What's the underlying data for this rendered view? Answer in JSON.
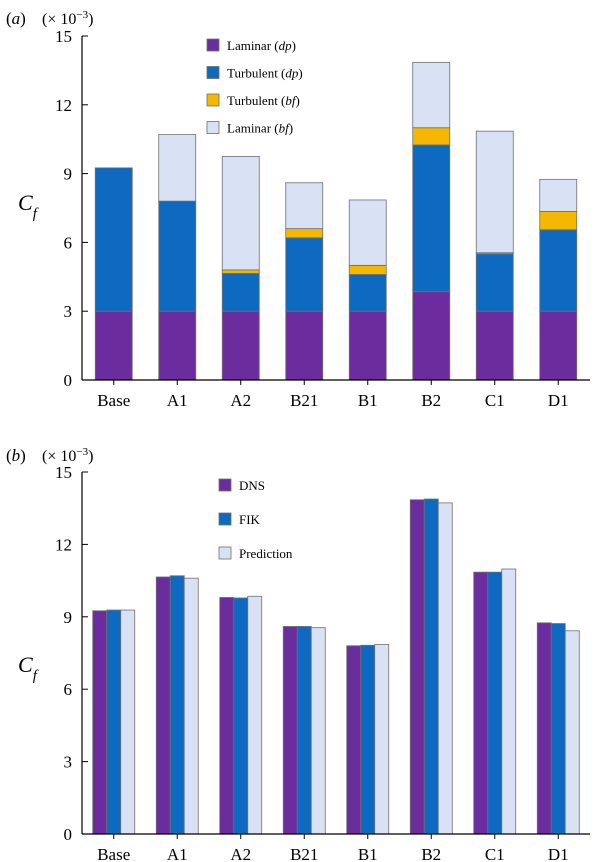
{
  "colors": {
    "laminar_dp": "#6B2D9E",
    "turbulent_dp": "#0E6AC0",
    "turbulent_bf": "#F5B700",
    "laminar_bf": "#D9E2F4",
    "dns": "#6B2D9E",
    "fik": "#0E6AC0",
    "prediction": "#D9E2F4"
  },
  "chart_data": [
    {
      "type": "bar",
      "stacked": true,
      "panel_label": "(a)",
      "scale_label_prefix": "(× 10",
      "scale_label_exp": "−3",
      "scale_label_suffix": ")",
      "ylabel_main": "C",
      "ylabel_sub": "f",
      "ylim": [
        0,
        15
      ],
      "yticks": [
        0,
        3,
        6,
        9,
        12,
        15
      ],
      "categories": [
        "Base",
        "A1",
        "A2",
        "B21",
        "B1",
        "B2",
        "C1",
        "D1"
      ],
      "legend_position": "top-left-inside",
      "series": [
        {
          "name": "Laminar (",
          "name_italic": "dp",
          "name_end": ")",
          "color_key": "laminar_dp",
          "values": [
            3.0,
            3.0,
            3.0,
            3.0,
            3.0,
            3.85,
            3.0,
            3.0
          ]
        },
        {
          "name": "Turbulent (",
          "name_italic": "dp",
          "name_end": ")",
          "color_key": "turbulent_dp",
          "values": [
            6.25,
            4.8,
            1.65,
            3.2,
            1.6,
            6.4,
            2.5,
            3.55
          ]
        },
        {
          "name": "Turbulent (",
          "name_italic": "bf",
          "name_end": ")",
          "color_key": "turbulent_bf",
          "values": [
            0.0,
            0.0,
            0.15,
            0.4,
            0.4,
            0.75,
            0.05,
            0.8
          ]
        },
        {
          "name": "Laminar (",
          "name_italic": "bf",
          "name_end": ")",
          "color_key": "laminar_bf",
          "values": [
            0.0,
            2.9,
            4.95,
            2.0,
            2.85,
            2.85,
            5.3,
            1.4
          ]
        }
      ]
    },
    {
      "type": "bar",
      "stacked": false,
      "panel_label": "(b)",
      "scale_label_prefix": "(× 10",
      "scale_label_exp": "−3",
      "scale_label_suffix": ")",
      "ylabel_main": "C",
      "ylabel_sub": "f",
      "ylim": [
        0,
        15
      ],
      "yticks": [
        0,
        3,
        6,
        9,
        12,
        15
      ],
      "categories": [
        "Base",
        "A1",
        "A2",
        "B21",
        "B1",
        "B2",
        "C1",
        "D1"
      ],
      "legend_position": "top-left-inside",
      "series": [
        {
          "name": "DNS",
          "color_key": "dns",
          "values": [
            9.25,
            10.65,
            9.8,
            8.6,
            7.8,
            13.85,
            10.85,
            8.75
          ]
        },
        {
          "name": "FIK",
          "color_key": "fik",
          "values": [
            9.28,
            10.7,
            9.78,
            8.6,
            7.82,
            13.88,
            10.85,
            8.72
          ]
        },
        {
          "name": "Prediction",
          "color_key": "prediction",
          "values": [
            9.28,
            10.6,
            9.85,
            8.55,
            7.85,
            13.72,
            10.98,
            8.42
          ]
        }
      ]
    }
  ]
}
